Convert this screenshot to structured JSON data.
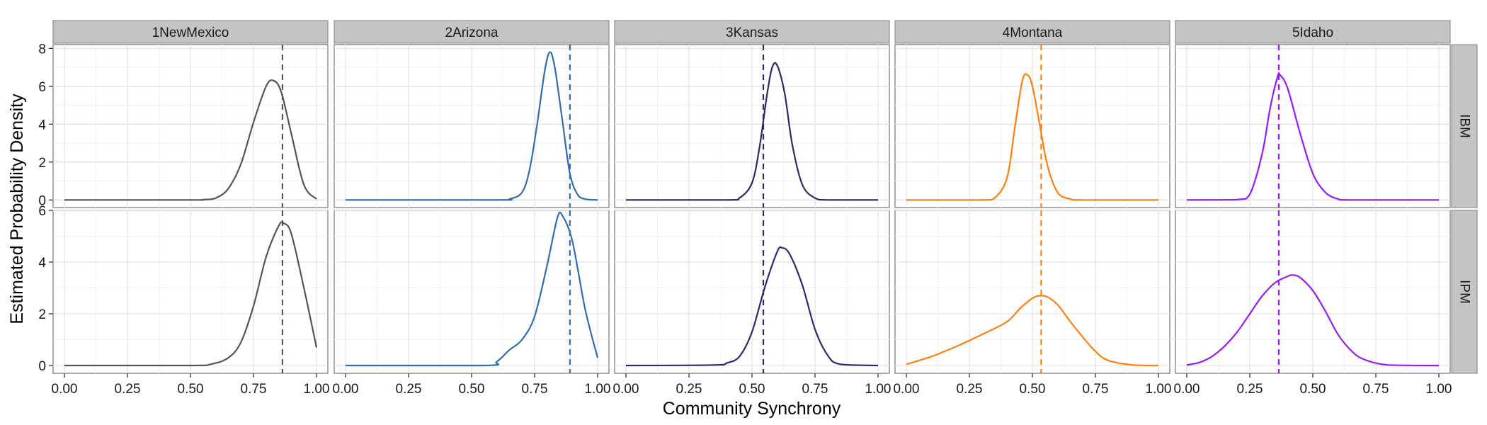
{
  "chart_data": {
    "type": "line",
    "xlabel": "Community Synchrony",
    "ylabel": "Estimated Probability Density",
    "xlim": [
      0,
      1
    ],
    "x_ticks": [
      "0.00",
      "0.25",
      "0.50",
      "0.75",
      "1.00"
    ],
    "x_tick_values": [
      0,
      0.25,
      0.5,
      0.75,
      1
    ],
    "grid": true,
    "columns": [
      {
        "label": "1NewMexico",
        "color": "#555555",
        "observed": 0.865
      },
      {
        "label": "2Arizona",
        "color": "#2E6DB4",
        "observed": 0.89
      },
      {
        "label": "3Kansas",
        "color": "#2B2A6B",
        "observed": 0.545
      },
      {
        "label": "4Montana",
        "color": "#FF7F0E",
        "observed": 0.535
      },
      {
        "label": "5Idaho",
        "color": "#9B19F5",
        "observed": 0.365
      }
    ],
    "rows": [
      {
        "label": "IBM",
        "ylim": [
          -0.4,
          8.2
        ],
        "y_ticks": [
          "0",
          "2",
          "4",
          "6",
          "8"
        ],
        "y_tick_values": [
          0,
          2,
          4,
          6,
          8
        ]
      },
      {
        "label": "IPM",
        "ylim": [
          -0.3,
          6.0
        ],
        "y_ticks": [
          "0",
          "2",
          "4",
          "6"
        ],
        "y_tick_values": [
          0,
          2,
          4,
          6
        ]
      }
    ],
    "densities": [
      [
        {
          "x": [
            0,
            0.5,
            0.55,
            0.6,
            0.65,
            0.7,
            0.75,
            0.8,
            0.83,
            0.86,
            0.9,
            0.95,
            1.0
          ],
          "y": [
            0,
            0,
            0.02,
            0.1,
            0.6,
            1.9,
            4.1,
            6.0,
            6.3,
            5.7,
            3.5,
            0.8,
            0.05
          ]
        },
        {
          "x": [
            0,
            0.5,
            0.58,
            0.65,
            0.7,
            0.75,
            0.8,
            0.85,
            0.87,
            0.9,
            0.95,
            1.0
          ],
          "y": [
            0,
            0,
            0.05,
            0.3,
            0.9,
            2.3,
            4.2,
            5.4,
            5.5,
            5.1,
            3.0,
            0.7
          ]
        }
      ],
      [
        {
          "x": [
            0,
            0.6,
            0.65,
            0.7,
            0.73,
            0.76,
            0.79,
            0.81,
            0.83,
            0.86,
            0.89,
            0.92,
            0.95,
            1.0
          ],
          "y": [
            0,
            0,
            0.05,
            0.4,
            1.6,
            4.0,
            6.8,
            7.8,
            7.0,
            4.2,
            1.4,
            0.3,
            0.05,
            0
          ]
        },
        {
          "x": [
            0,
            0.55,
            0.6,
            0.65,
            0.7,
            0.75,
            0.8,
            0.84,
            0.86,
            0.9,
            0.95,
            1.0
          ],
          "y": [
            0,
            0,
            0.15,
            0.6,
            1.0,
            1.9,
            3.9,
            5.7,
            5.8,
            4.8,
            2.2,
            0.3
          ]
        }
      ],
      [
        {
          "x": [
            0,
            0.4,
            0.45,
            0.5,
            0.53,
            0.56,
            0.58,
            0.6,
            0.63,
            0.66,
            0.7,
            0.75,
            0.8,
            1.0
          ],
          "y": [
            0,
            0,
            0.1,
            0.9,
            2.8,
            5.6,
            7.0,
            7.1,
            5.6,
            2.9,
            0.8,
            0.1,
            0,
            0
          ]
        },
        {
          "x": [
            0,
            0.35,
            0.4,
            0.45,
            0.5,
            0.55,
            0.6,
            0.62,
            0.65,
            0.7,
            0.75,
            0.8,
            0.85,
            1.0
          ],
          "y": [
            0,
            0.02,
            0.1,
            0.35,
            1.3,
            3.0,
            4.4,
            4.55,
            4.3,
            3.1,
            1.4,
            0.4,
            0.05,
            0
          ]
        }
      ],
      [
        {
          "x": [
            0,
            0.3,
            0.35,
            0.4,
            0.43,
            0.46,
            0.48,
            0.5,
            0.53,
            0.56,
            0.6,
            0.65,
            0.7,
            1.0
          ],
          "y": [
            0,
            0,
            0.1,
            1.2,
            3.8,
            6.3,
            6.6,
            6.0,
            3.9,
            1.8,
            0.4,
            0.05,
            0,
            0
          ]
        },
        {
          "x": [
            0,
            0.1,
            0.2,
            0.3,
            0.4,
            0.45,
            0.5,
            0.53,
            0.56,
            0.6,
            0.65,
            0.7,
            0.75,
            0.8,
            0.9,
            1.0
          ],
          "y": [
            0.05,
            0.35,
            0.75,
            1.2,
            1.7,
            2.2,
            2.6,
            2.7,
            2.65,
            2.35,
            1.7,
            1.1,
            0.55,
            0.2,
            0.02,
            0
          ]
        }
      ],
      [
        {
          "x": [
            0,
            0.2,
            0.25,
            0.3,
            0.33,
            0.36,
            0.37,
            0.4,
            0.45,
            0.5,
            0.55,
            0.6,
            0.65,
            1.0
          ],
          "y": [
            0,
            0.02,
            0.3,
            2.5,
            4.8,
            6.5,
            6.6,
            5.9,
            3.5,
            1.4,
            0.4,
            0.05,
            0,
            0
          ]
        },
        {
          "x": [
            0,
            0.05,
            0.1,
            0.15,
            0.2,
            0.25,
            0.3,
            0.35,
            0.4,
            0.42,
            0.45,
            0.5,
            0.55,
            0.6,
            0.65,
            0.7,
            0.8,
            1.0
          ],
          "y": [
            0.02,
            0.12,
            0.35,
            0.75,
            1.3,
            2.0,
            2.7,
            3.2,
            3.45,
            3.5,
            3.4,
            2.9,
            2.1,
            1.2,
            0.6,
            0.25,
            0.02,
            0
          ]
        }
      ]
    ]
  }
}
